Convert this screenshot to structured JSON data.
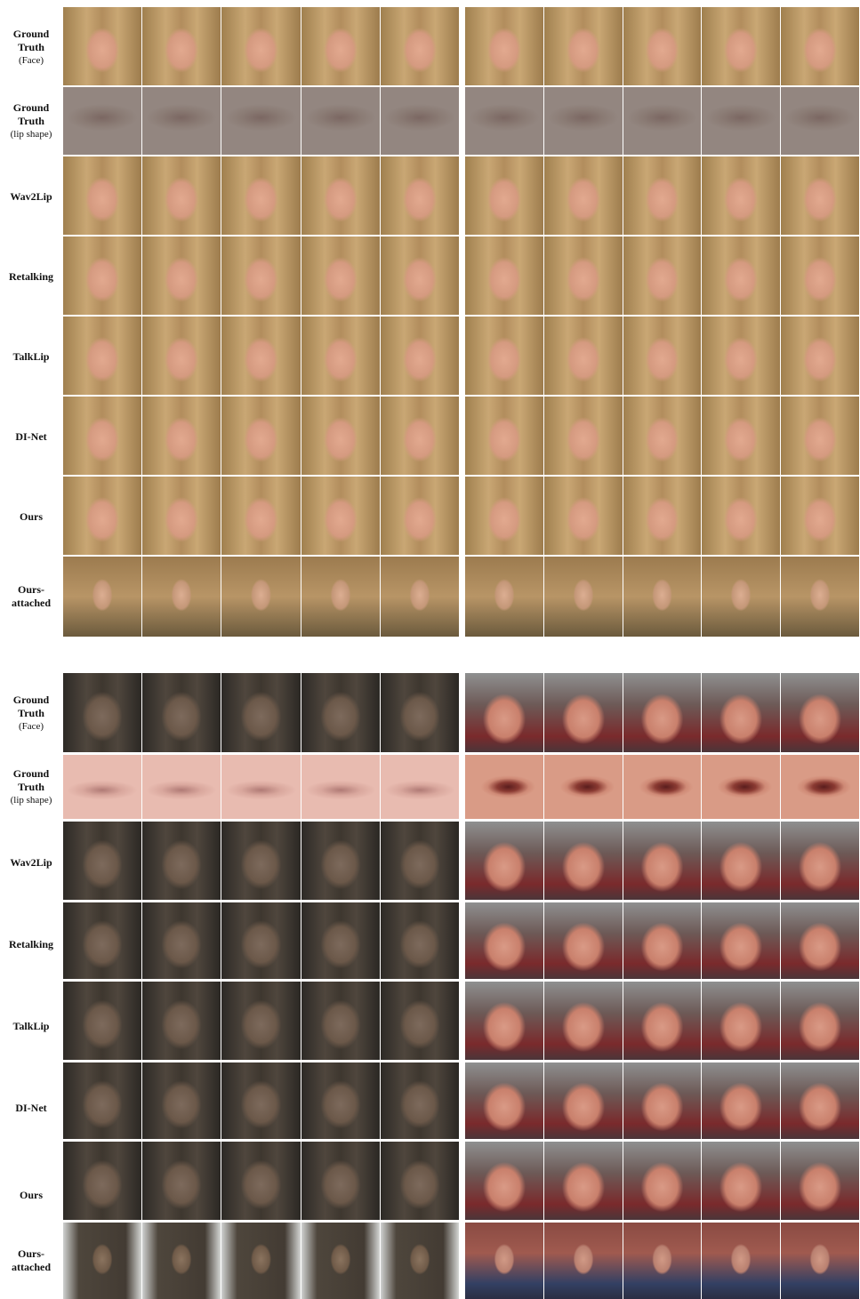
{
  "row_labels": {
    "gt_face": {
      "title": "Ground Truth",
      "sub": "(Face)"
    },
    "gt_lip": {
      "title": "Ground Truth",
      "sub": "(lip shape)"
    },
    "wav2lip": "Wav2Lip",
    "retalking": "Retalking",
    "talklip": "TalkLip",
    "dinet": "DI-Net",
    "ours": "Ours",
    "ours_attached": "Ours-attached"
  },
  "frames_per_panel": 5
}
